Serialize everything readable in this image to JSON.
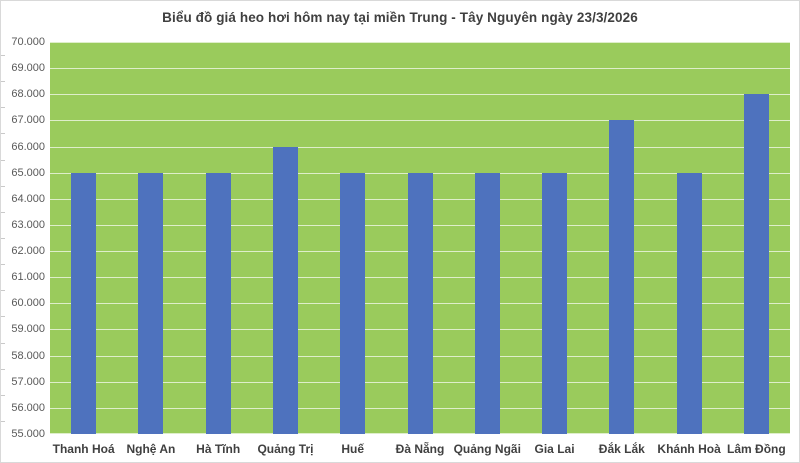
{
  "chart_data": {
    "type": "bar",
    "title": "Biểu đồ giá heo hơi hôm nay tại miền Trung - Tây Nguyên ngày 23/3/2026",
    "categories": [
      "Thanh Hoá",
      "Nghệ An",
      "Hà Tĩnh",
      "Quảng Trị",
      "Huế",
      "Đà Nẵng",
      "Quảng Ngãi",
      "Gia Lai",
      "Đắk Lắk",
      "Khánh Hoà",
      "Lâm Đồng"
    ],
    "values": [
      65000,
      65000,
      65000,
      66000,
      65000,
      65000,
      65000,
      65000,
      67000,
      65000,
      68000
    ],
    "xlabel": "",
    "ylabel": "",
    "ylim": [
      55000,
      70000
    ],
    "ytick_step": 1000,
    "ytick_values": [
      55000,
      56000,
      57000,
      58000,
      59000,
      60000,
      61000,
      62000,
      63000,
      64000,
      65000,
      66000,
      67000,
      68000,
      69000,
      70000
    ],
    "ytick_labels": [
      "55.000",
      "56.000",
      "57.000",
      "58.000",
      "59.000",
      "60.000",
      "61.000",
      "62.000",
      "63.000",
      "64.000",
      "65.000",
      "66.000",
      "67.000",
      "68.000",
      "69.000",
      "70.000"
    ],
    "grid": true,
    "legend": "none",
    "colors": {
      "bar": "#4e72be",
      "plot_background": "#9acb5c",
      "gridline": "rgba(255,255,255,0.68)",
      "title_text": "#404040",
      "axis_text": "#595959",
      "category_text": "#404040",
      "frame_border": "#d9d9d9"
    }
  }
}
